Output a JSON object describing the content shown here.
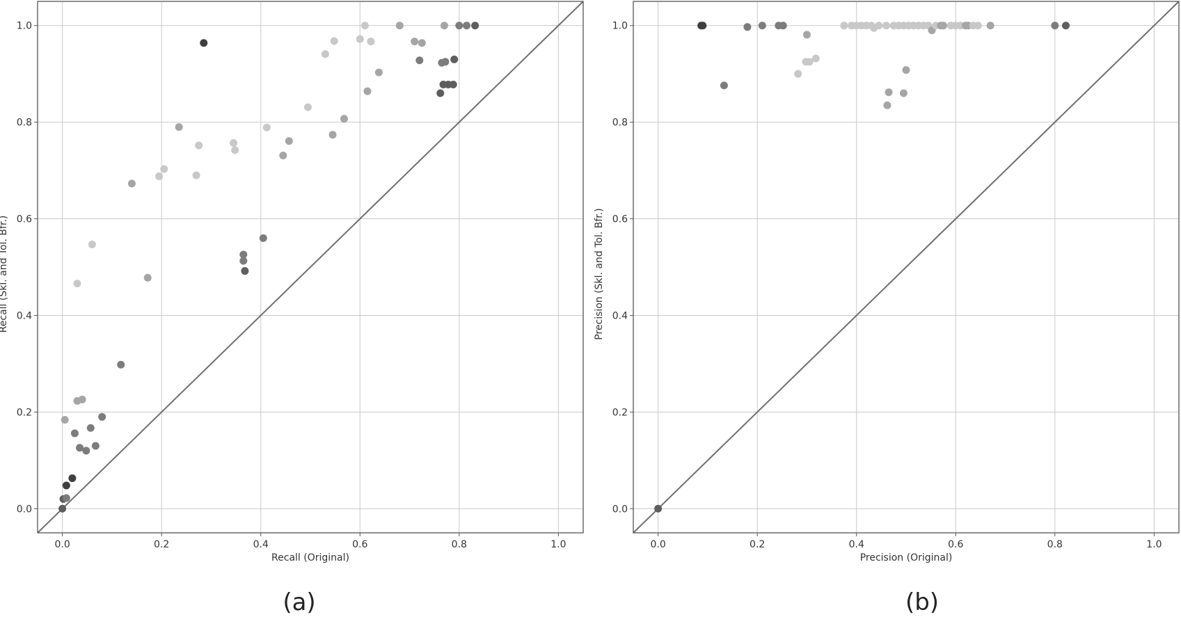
{
  "chart_data": [
    {
      "type": "scatter",
      "panel_label": "(a)",
      "xlabel": "Recall (Original)",
      "ylabel": "Recall (Skl. and Tol. Bfr.)",
      "xlim": [
        -0.05,
        1.05
      ],
      "ylim": [
        -0.05,
        1.05
      ],
      "x_ticks": [
        "0.0",
        "0.2",
        "0.4",
        "0.6",
        "0.8",
        "1.0"
      ],
      "y_ticks": [
        "0.0",
        "0.2",
        "0.4",
        "0.6",
        "0.8",
        "1.0"
      ],
      "grid": true,
      "legend": "none",
      "reference_line": "y = x",
      "point_colors": {
        "light": "#c8c8c8",
        "medium": "#a5a5a5",
        "mid": "#7c7c7c",
        "dark": "#5e5e5e",
        "darkest": "#3f3f3f"
      },
      "points": [
        {
          "x": 0.0,
          "y": 0.0,
          "shade": "dark"
        },
        {
          "x": 0.002,
          "y": 0.02,
          "shade": "dark"
        },
        {
          "x": 0.008,
          "y": 0.022,
          "shade": "mid"
        },
        {
          "x": 0.008,
          "y": 0.048,
          "shade": "darkest"
        },
        {
          "x": 0.02,
          "y": 0.063,
          "shade": "darkest"
        },
        {
          "x": 0.005,
          "y": 0.184,
          "shade": "medium"
        },
        {
          "x": 0.025,
          "y": 0.156,
          "shade": "mid"
        },
        {
          "x": 0.03,
          "y": 0.223,
          "shade": "medium"
        },
        {
          "x": 0.04,
          "y": 0.226,
          "shade": "medium"
        },
        {
          "x": 0.035,
          "y": 0.126,
          "shade": "mid"
        },
        {
          "x": 0.048,
          "y": 0.12,
          "shade": "mid"
        },
        {
          "x": 0.057,
          "y": 0.167,
          "shade": "mid"
        },
        {
          "x": 0.067,
          "y": 0.13,
          "shade": "mid"
        },
        {
          "x": 0.08,
          "y": 0.19,
          "shade": "mid"
        },
        {
          "x": 0.118,
          "y": 0.298,
          "shade": "mid"
        },
        {
          "x": 0.03,
          "y": 0.466,
          "shade": "light"
        },
        {
          "x": 0.06,
          "y": 0.547,
          "shade": "light"
        },
        {
          "x": 0.14,
          "y": 0.673,
          "shade": "medium"
        },
        {
          "x": 0.172,
          "y": 0.478,
          "shade": "medium"
        },
        {
          "x": 0.195,
          "y": 0.688,
          "shade": "light"
        },
        {
          "x": 0.205,
          "y": 0.703,
          "shade": "light"
        },
        {
          "x": 0.235,
          "y": 0.79,
          "shade": "medium"
        },
        {
          "x": 0.27,
          "y": 0.69,
          "shade": "light"
        },
        {
          "x": 0.275,
          "y": 0.752,
          "shade": "light"
        },
        {
          "x": 0.285,
          "y": 0.964,
          "shade": "darkest"
        },
        {
          "x": 0.345,
          "y": 0.757,
          "shade": "light"
        },
        {
          "x": 0.348,
          "y": 0.742,
          "shade": "light"
        },
        {
          "x": 0.365,
          "y": 0.526,
          "shade": "mid"
        },
        {
          "x": 0.365,
          "y": 0.513,
          "shade": "mid"
        },
        {
          "x": 0.368,
          "y": 0.492,
          "shade": "dark"
        },
        {
          "x": 0.405,
          "y": 0.56,
          "shade": "mid"
        },
        {
          "x": 0.412,
          "y": 0.789,
          "shade": "light"
        },
        {
          "x": 0.445,
          "y": 0.731,
          "shade": "medium"
        },
        {
          "x": 0.457,
          "y": 0.761,
          "shade": "medium"
        },
        {
          "x": 0.495,
          "y": 0.831,
          "shade": "light"
        },
        {
          "x": 0.53,
          "y": 0.941,
          "shade": "light"
        },
        {
          "x": 0.545,
          "y": 0.774,
          "shade": "medium"
        },
        {
          "x": 0.548,
          "y": 0.968,
          "shade": "light"
        },
        {
          "x": 0.568,
          "y": 0.807,
          "shade": "medium"
        },
        {
          "x": 0.6,
          "y": 0.972,
          "shade": "light"
        },
        {
          "x": 0.61,
          "y": 1.0,
          "shade": "light"
        },
        {
          "x": 0.615,
          "y": 0.864,
          "shade": "medium"
        },
        {
          "x": 0.622,
          "y": 0.967,
          "shade": "light"
        },
        {
          "x": 0.638,
          "y": 0.903,
          "shade": "medium"
        },
        {
          "x": 0.68,
          "y": 1.0,
          "shade": "medium"
        },
        {
          "x": 0.71,
          "y": 0.967,
          "shade": "medium"
        },
        {
          "x": 0.72,
          "y": 0.928,
          "shade": "mid"
        },
        {
          "x": 0.725,
          "y": 0.964,
          "shade": "medium"
        },
        {
          "x": 0.762,
          "y": 0.86,
          "shade": "dark"
        },
        {
          "x": 0.765,
          "y": 0.923,
          "shade": "mid"
        },
        {
          "x": 0.768,
          "y": 0.878,
          "shade": "dark"
        },
        {
          "x": 0.772,
          "y": 0.925,
          "shade": "mid"
        },
        {
          "x": 0.77,
          "y": 1.0,
          "shade": "medium"
        },
        {
          "x": 0.778,
          "y": 0.878,
          "shade": "dark"
        },
        {
          "x": 0.788,
          "y": 0.878,
          "shade": "dark"
        },
        {
          "x": 0.79,
          "y": 0.93,
          "shade": "dark"
        },
        {
          "x": 0.8,
          "y": 1.0,
          "shade": "mid"
        },
        {
          "x": 0.815,
          "y": 1.0,
          "shade": "mid"
        },
        {
          "x": 0.832,
          "y": 1.0,
          "shade": "dark"
        }
      ]
    },
    {
      "type": "scatter",
      "panel_label": "(b)",
      "xlabel": "Precision (Original)",
      "ylabel": "Precision (Skl. and Tol. Bfr.)",
      "xlim": [
        -0.05,
        1.05
      ],
      "ylim": [
        -0.05,
        1.05
      ],
      "x_ticks": [
        "0.0",
        "0.2",
        "0.4",
        "0.6",
        "0.8",
        "1.0"
      ],
      "y_ticks": [
        "0.0",
        "0.2",
        "0.4",
        "0.6",
        "0.8",
        "1.0"
      ],
      "grid": true,
      "legend": "none",
      "reference_line": "y = x",
      "point_colors": {
        "light": "#c8c8c8",
        "medium": "#a5a5a5",
        "mid": "#7c7c7c",
        "dark": "#5e5e5e",
        "darkest": "#3f3f3f"
      },
      "points": [
        {
          "x": 0.0,
          "y": 0.0,
          "shade": "dark"
        },
        {
          "x": 0.087,
          "y": 1.0,
          "shade": "darkest"
        },
        {
          "x": 0.09,
          "y": 1.0,
          "shade": "darkest"
        },
        {
          "x": 0.133,
          "y": 0.876,
          "shade": "mid"
        },
        {
          "x": 0.18,
          "y": 0.997,
          "shade": "mid"
        },
        {
          "x": 0.21,
          "y": 1.0,
          "shade": "mid"
        },
        {
          "x": 0.243,
          "y": 1.0,
          "shade": "mid"
        },
        {
          "x": 0.252,
          "y": 1.0,
          "shade": "mid"
        },
        {
          "x": 0.282,
          "y": 0.9,
          "shade": "light"
        },
        {
          "x": 0.298,
          "y": 0.925,
          "shade": "light"
        },
        {
          "x": 0.3,
          "y": 0.981,
          "shade": "medium"
        },
        {
          "x": 0.305,
          "y": 0.925,
          "shade": "light"
        },
        {
          "x": 0.318,
          "y": 0.932,
          "shade": "light"
        },
        {
          "x": 0.375,
          "y": 1.0,
          "shade": "light"
        },
        {
          "x": 0.39,
          "y": 1.0,
          "shade": "light"
        },
        {
          "x": 0.4,
          "y": 1.0,
          "shade": "light"
        },
        {
          "x": 0.41,
          "y": 1.0,
          "shade": "light"
        },
        {
          "x": 0.42,
          "y": 1.0,
          "shade": "light"
        },
        {
          "x": 0.43,
          "y": 1.0,
          "shade": "light"
        },
        {
          "x": 0.435,
          "y": 0.995,
          "shade": "light"
        },
        {
          "x": 0.445,
          "y": 1.0,
          "shade": "light"
        },
        {
          "x": 0.46,
          "y": 1.0,
          "shade": "light"
        },
        {
          "x": 0.462,
          "y": 0.835,
          "shade": "medium"
        },
        {
          "x": 0.465,
          "y": 0.862,
          "shade": "medium"
        },
        {
          "x": 0.475,
          "y": 1.0,
          "shade": "light"
        },
        {
          "x": 0.485,
          "y": 1.0,
          "shade": "light"
        },
        {
          "x": 0.495,
          "y": 1.0,
          "shade": "light"
        },
        {
          "x": 0.495,
          "y": 0.86,
          "shade": "medium"
        },
        {
          "x": 0.5,
          "y": 0.908,
          "shade": "medium"
        },
        {
          "x": 0.505,
          "y": 1.0,
          "shade": "light"
        },
        {
          "x": 0.515,
          "y": 1.0,
          "shade": "light"
        },
        {
          "x": 0.525,
          "y": 1.0,
          "shade": "light"
        },
        {
          "x": 0.535,
          "y": 1.0,
          "shade": "light"
        },
        {
          "x": 0.545,
          "y": 1.0,
          "shade": "light"
        },
        {
          "x": 0.552,
          "y": 0.99,
          "shade": "medium"
        },
        {
          "x": 0.56,
          "y": 1.0,
          "shade": "light"
        },
        {
          "x": 0.57,
          "y": 1.0,
          "shade": "medium"
        },
        {
          "x": 0.575,
          "y": 1.0,
          "shade": "medium"
        },
        {
          "x": 0.59,
          "y": 1.0,
          "shade": "light"
        },
        {
          "x": 0.6,
          "y": 1.0,
          "shade": "light"
        },
        {
          "x": 0.61,
          "y": 1.0,
          "shade": "light"
        },
        {
          "x": 0.62,
          "y": 1.0,
          "shade": "medium"
        },
        {
          "x": 0.625,
          "y": 1.0,
          "shade": "medium"
        },
        {
          "x": 0.635,
          "y": 1.0,
          "shade": "light"
        },
        {
          "x": 0.645,
          "y": 1.0,
          "shade": "light"
        },
        {
          "x": 0.67,
          "y": 1.0,
          "shade": "medium"
        },
        {
          "x": 0.8,
          "y": 1.0,
          "shade": "mid"
        },
        {
          "x": 0.822,
          "y": 1.0,
          "shade": "dark"
        }
      ]
    }
  ]
}
